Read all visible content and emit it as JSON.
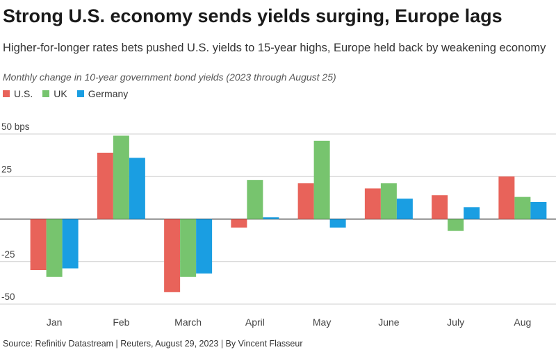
{
  "header": {
    "title": "Strong U.S. economy sends yields surging, Europe lags",
    "subtitle": "Higher-for-longer rates bets pushed U.S. yields to 15-year highs, Europe held back by weakening economy",
    "note": "Monthly change in 10-year government bond yields (2023 through August 25)"
  },
  "legend": [
    {
      "label": "U.S.",
      "color": "#e8635a"
    },
    {
      "label": "UK",
      "color": "#77c46e"
    },
    {
      "label": "Germany",
      "color": "#1a9ee2"
    }
  ],
  "source": "Source: Refinitiv Datastream | Reuters, August 29, 2023 | By Vincent Flasseur",
  "chart_data": {
    "type": "bar",
    "title": "Strong U.S. economy sends yields surging, Europe lags",
    "subtitle": "Monthly change in 10-year government bond yields (2023 through August 25)",
    "xlabel": "",
    "ylabel": "bps",
    "ylim": [
      -50,
      50
    ],
    "y_ticks": [
      50,
      25,
      0,
      -25,
      -50
    ],
    "y_tick_labels": [
      "50 bps",
      "25",
      "",
      "-25",
      "-50"
    ],
    "categories": [
      "Jan",
      "Feb",
      "March",
      "April",
      "May",
      "June",
      "July",
      "Aug"
    ],
    "series": [
      {
        "name": "U.S.",
        "color": "#e8635a",
        "values": [
          -30,
          39,
          -43,
          -5,
          21,
          18,
          14,
          25
        ]
      },
      {
        "name": "UK",
        "color": "#77c46e",
        "values": [
          -34,
          49,
          -34,
          23,
          46,
          21,
          -7,
          13
        ]
      },
      {
        "name": "Germany",
        "color": "#1a9ee2",
        "values": [
          -29,
          36,
          -32,
          1,
          -5,
          12,
          7,
          10
        ]
      }
    ]
  }
}
